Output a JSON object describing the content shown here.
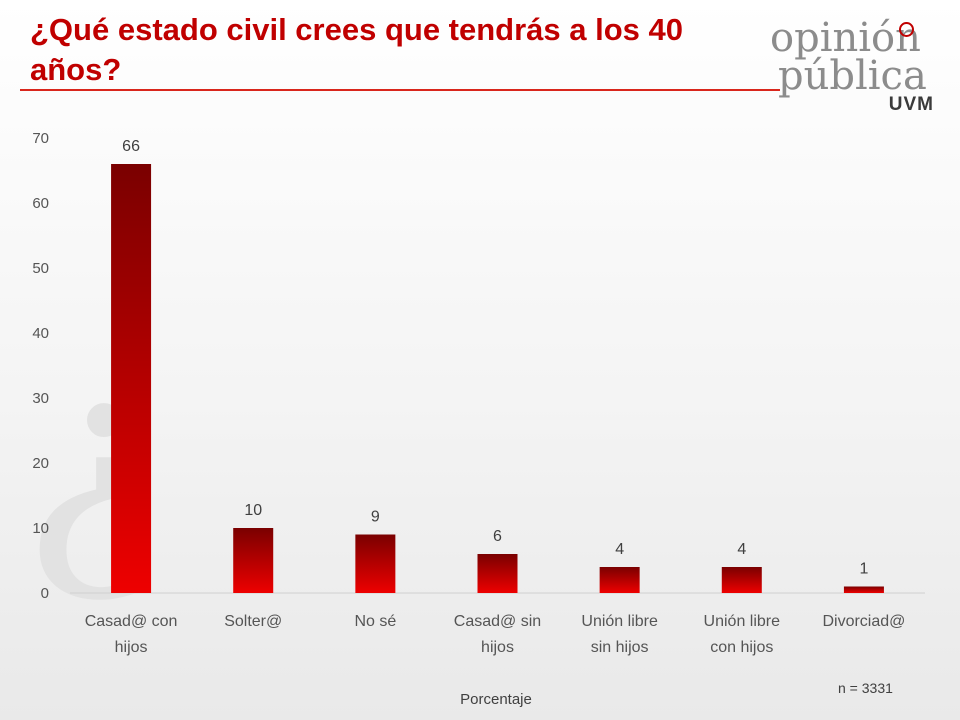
{
  "header": {
    "title": "¿Qué estado civil crees que tendrás a los 40 años?"
  },
  "logo": {
    "line1": "opinión",
    "line2": "pública",
    "line3": "UVM"
  },
  "watermark_glyph": "¿",
  "colors": {
    "title": "#c00000",
    "bar_dark": "#7a0000",
    "bar_light": "#ee0000",
    "rule": "#d9261c"
  },
  "chart_data": {
    "type": "bar",
    "title": "",
    "categories": [
      "Casad@ con hijos",
      "Solter@",
      "No sé",
      "Casad@ sin hijos",
      "Unión libre sin hijos",
      "Unión libre con hijos",
      "Divorciad@"
    ],
    "values": [
      66,
      10,
      9,
      6,
      4,
      4,
      1
    ],
    "data_labels": [
      "66",
      "10",
      "9",
      "6",
      "4",
      "4",
      "1"
    ],
    "xlabel": "Porcentaje",
    "ylabel": "",
    "ylim": [
      0,
      70
    ],
    "yticks": [
      0,
      10,
      20,
      30,
      40,
      50,
      60,
      70
    ],
    "grid": false,
    "legend": "none",
    "note": "n = 3331"
  }
}
